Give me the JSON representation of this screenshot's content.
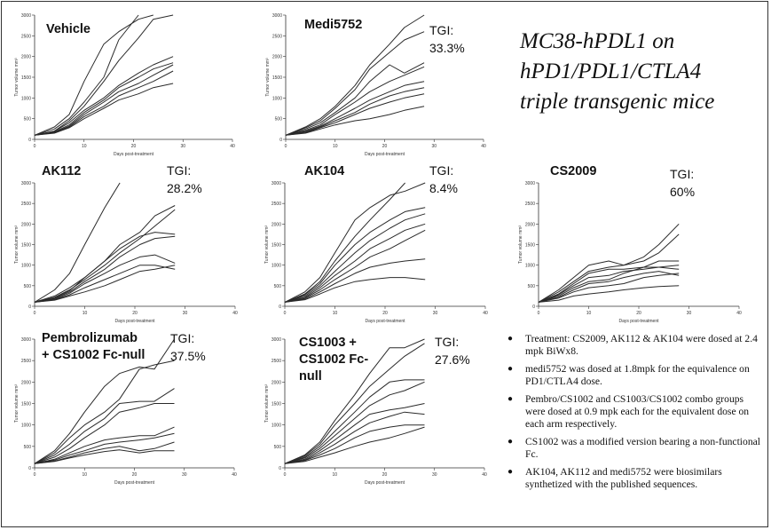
{
  "slide": {
    "title_lines": [
      "MC38-hPDL1 on",
      "hPD1/PDL1/CTLA4",
      "triple transgenic mice"
    ],
    "notes": [
      "Treatment: CS2009, AK112 & AK104 were dosed at 2.4 mpk BiWx8.",
      "medi5752 was dosed at 1.8mpk for the equivalence on PD1/CTLA4 dose.",
      "Pembro/CS1002 and CS1003/CS1002 combo groups were dosed at 0.9 mpk each for the equivalent dose on each arm respectively.",
      "CS1002 was a modified version bearing a non-functional Fc.",
      "AK104, AK112 and medi5752 were biosimilars synthetized with the published sequences."
    ]
  },
  "chart_data": [
    {
      "type": "line",
      "group": "Vehicle",
      "group_lines": [
        "Vehicle"
      ],
      "tgi_lines": [],
      "xlabel": "Days post-treatment",
      "ylabel": "Tumor volume mm³",
      "xlim": [
        0,
        40
      ],
      "ylim": [
        0,
        3000
      ],
      "xticks": [
        0,
        10,
        20,
        30,
        40
      ],
      "yticks": [
        0,
        500,
        1000,
        1500,
        2000,
        2500,
        3000
      ],
      "x": [
        0,
        4,
        7,
        10,
        14,
        17,
        21,
        24,
        28
      ],
      "series": [
        {
          "values": [
            100,
            300,
            600,
            1400,
            2300,
            2600,
            2900,
            3000,
            null
          ]
        },
        {
          "values": [
            100,
            250,
            500,
            900,
            1500,
            2400,
            3000,
            null,
            null
          ]
        },
        {
          "values": [
            100,
            200,
            450,
            800,
            1400,
            1900,
            2450,
            2900,
            3000
          ]
        },
        {
          "values": [
            100,
            200,
            400,
            700,
            1000,
            1300,
            1600,
            1800,
            2000
          ]
        },
        {
          "values": [
            100,
            180,
            350,
            650,
            950,
            1250,
            1500,
            1700,
            1850
          ]
        },
        {
          "values": [
            100,
            170,
            320,
            600,
            900,
            1150,
            1350,
            1550,
            1800
          ]
        },
        {
          "values": [
            100,
            160,
            300,
            550,
            800,
            1050,
            1250,
            1400,
            1650
          ]
        },
        {
          "values": [
            100,
            150,
            280,
            500,
            750,
            950,
            1100,
            1250,
            1350
          ]
        }
      ]
    },
    {
      "type": "line",
      "group": "Medi5752",
      "group_lines": [
        "Medi5752"
      ],
      "tgi_lines": [
        "TGI:",
        "33.3%"
      ],
      "xlabel": "Days post-treatment",
      "ylabel": "Tumor volume mm³",
      "xlim": [
        0,
        40
      ],
      "ylim": [
        0,
        3000
      ],
      "xticks": [
        0,
        10,
        20,
        30,
        40
      ],
      "yticks": [
        0,
        500,
        1000,
        1500,
        2000,
        2500,
        3000
      ],
      "x": [
        0,
        4,
        7,
        10,
        14,
        17,
        21,
        24,
        28
      ],
      "series": [
        {
          "values": [
            100,
            300,
            500,
            800,
            1300,
            1800,
            2300,
            2700,
            3000
          ]
        },
        {
          "values": [
            100,
            280,
            450,
            750,
            1200,
            1700,
            2100,
            2400,
            2600
          ]
        },
        {
          "values": [
            100,
            250,
            400,
            650,
            1000,
            1400,
            1800,
            1600,
            1850
          ]
        },
        {
          "values": [
            100,
            220,
            350,
            600,
            900,
            1150,
            1400,
            1550,
            1750
          ]
        },
        {
          "values": [
            100,
            200,
            320,
            500,
            750,
            950,
            1150,
            1300,
            1400
          ]
        },
        {
          "values": [
            100,
            180,
            300,
            450,
            650,
            850,
            1050,
            1150,
            1250
          ]
        },
        {
          "values": [
            100,
            160,
            280,
            400,
            600,
            750,
            900,
            1000,
            1100
          ]
        },
        {
          "values": [
            100,
            150,
            250,
            350,
            450,
            500,
            600,
            700,
            800
          ]
        }
      ]
    },
    {
      "type": "line",
      "group": "AK112",
      "group_lines": [
        "AK112"
      ],
      "tgi_lines": [
        "TGI:",
        "28.2%"
      ],
      "xlabel": "Days post-treatment",
      "ylabel": "Tumor volume mm³",
      "xlim": [
        0,
        40
      ],
      "ylim": [
        0,
        3000
      ],
      "xticks": [
        0,
        10,
        20,
        30,
        40
      ],
      "yticks": [
        0,
        500,
        1000,
        1500,
        2000,
        2500,
        3000
      ],
      "x": [
        0,
        4,
        7,
        10,
        14,
        17,
        21,
        24,
        28
      ],
      "series": [
        {
          "values": [
            100,
            400,
            800,
            1500,
            2400,
            3000,
            null,
            null,
            null
          ]
        },
        {
          "values": [
            100,
            250,
            450,
            700,
            1100,
            1500,
            1800,
            2200,
            2450
          ]
        },
        {
          "values": [
            100,
            220,
            400,
            650,
            1000,
            1300,
            1650,
            1950,
            2350
          ]
        },
        {
          "values": [
            100,
            200,
            380,
            700,
            1100,
            1400,
            1700,
            1800,
            1750
          ]
        },
        {
          "values": [
            100,
            190,
            350,
            600,
            900,
            1200,
            1500,
            1650,
            1700
          ]
        },
        {
          "values": [
            100,
            170,
            320,
            550,
            800,
            1000,
            1200,
            1250,
            1050
          ]
        },
        {
          "values": [
            100,
            160,
            280,
            450,
            650,
            800,
            1000,
            1000,
            900
          ]
        },
        {
          "values": [
            100,
            150,
            250,
            350,
            500,
            650,
            850,
            900,
            1000
          ]
        }
      ]
    },
    {
      "type": "line",
      "group": "AK104",
      "group_lines": [
        "AK104"
      ],
      "tgi_lines": [
        "TGI:",
        "8.4%"
      ],
      "xlabel": "Days post-treatment",
      "ylabel": "Tumor volume mm³",
      "xlim": [
        0,
        40
      ],
      "ylim": [
        0,
        3000
      ],
      "xticks": [
        0,
        10,
        20,
        30,
        40
      ],
      "yticks": [
        0,
        500,
        1000,
        1500,
        2000,
        2500,
        3000
      ],
      "x": [
        0,
        4,
        7,
        10,
        14,
        17,
        21,
        24,
        28
      ],
      "series": [
        {
          "values": [
            100,
            350,
            700,
            1300,
            2100,
            2400,
            2700,
            2800,
            3000
          ]
        },
        {
          "values": [
            100,
            300,
            600,
            1100,
            1700,
            2100,
            2600,
            3000,
            null
          ]
        },
        {
          "values": [
            100,
            280,
            550,
            1000,
            1500,
            1800,
            2100,
            2300,
            2400
          ]
        },
        {
          "values": [
            100,
            250,
            500,
            850,
            1300,
            1600,
            1900,
            2100,
            2250
          ]
        },
        {
          "values": [
            100,
            220,
            450,
            750,
            1100,
            1400,
            1650,
            1850,
            2000
          ]
        },
        {
          "values": [
            100,
            200,
            400,
            650,
            950,
            1200,
            1400,
            1600,
            1850
          ]
        },
        {
          "values": [
            100,
            180,
            350,
            550,
            800,
            950,
            1050,
            1100,
            1150
          ]
        },
        {
          "values": [
            100,
            160,
            300,
            450,
            600,
            650,
            700,
            700,
            650
          ]
        }
      ]
    },
    {
      "type": "line",
      "group": "CS2009",
      "group_lines": [
        "CS2009"
      ],
      "tgi_lines": [
        "TGI:",
        "60%"
      ],
      "xlabel": "Days post-treatment",
      "ylabel": "Tumor volume mm³",
      "xlim": [
        0,
        40
      ],
      "ylim": [
        0,
        3000
      ],
      "xticks": [
        0,
        10,
        20,
        30,
        40
      ],
      "yticks": [
        0,
        500,
        1000,
        1500,
        2000,
        2500,
        3000
      ],
      "x": [
        0,
        4,
        7,
        10,
        14,
        17,
        21,
        24,
        28
      ],
      "series": [
        {
          "values": [
            100,
            400,
            700,
            1000,
            1100,
            1000,
            1200,
            1500,
            2000
          ]
        },
        {
          "values": [
            100,
            350,
            600,
            850,
            950,
            1000,
            1100,
            1300,
            1750
          ]
        },
        {
          "values": [
            100,
            300,
            550,
            800,
            900,
            900,
            950,
            1100,
            1100
          ]
        },
        {
          "values": [
            100,
            280,
            500,
            700,
            750,
            850,
            900,
            950,
            1000
          ]
        },
        {
          "values": [
            100,
            250,
            450,
            600,
            650,
            800,
            950,
            950,
            900
          ]
        },
        {
          "values": [
            100,
            220,
            400,
            550,
            600,
            700,
            800,
            850,
            750
          ]
        },
        {
          "values": [
            100,
            200,
            350,
            450,
            500,
            550,
            700,
            750,
            800
          ]
        },
        {
          "values": [
            100,
            150,
            250,
            300,
            350,
            400,
            450,
            480,
            500
          ]
        }
      ]
    },
    {
      "type": "line",
      "group": "Pembrolizumab + CS1002 Fc-null",
      "group_lines": [
        "Pembrolizumab",
        "+ CS1002 Fc-null"
      ],
      "tgi_lines": [
        "TGI:",
        "37.5%"
      ],
      "xlabel": "Days post-treatment",
      "ylabel": "Tumor volume mm³",
      "xlim": [
        0,
        40
      ],
      "ylim": [
        0,
        3000
      ],
      "xticks": [
        0,
        10,
        20,
        30,
        40
      ],
      "yticks": [
        0,
        500,
        1000,
        1500,
        2000,
        2500,
        3000
      ],
      "x": [
        0,
        4,
        7,
        10,
        14,
        17,
        21,
        24,
        28
      ],
      "series": [
        {
          "values": [
            100,
            400,
            800,
            1300,
            1900,
            2200,
            2350,
            2300,
            3000
          ]
        },
        {
          "values": [
            100,
            350,
            700,
            1000,
            1300,
            1600,
            2300,
            2400,
            2500
          ]
        },
        {
          "values": [
            100,
            300,
            550,
            850,
            1150,
            1500,
            1550,
            1550,
            1850
          ]
        },
        {
          "values": [
            100,
            250,
            450,
            700,
            1000,
            1300,
            1400,
            1500,
            1500
          ]
        },
        {
          "values": [
            100,
            200,
            350,
            500,
            650,
            700,
            750,
            750,
            950
          ]
        },
        {
          "values": [
            100,
            180,
            300,
            400,
            550,
            600,
            650,
            700,
            800
          ]
        },
        {
          "values": [
            100,
            160,
            250,
            350,
            450,
            500,
            400,
            450,
            600
          ]
        },
        {
          "values": [
            100,
            150,
            230,
            300,
            380,
            420,
            350,
            400,
            400
          ]
        }
      ]
    },
    {
      "type": "line",
      "group": "CS1003 + CS1002 Fc-null",
      "group_lines": [
        "CS1003 +",
        "CS1002 Fc-",
        "null"
      ],
      "tgi_lines": [
        "TGI:",
        "27.6%"
      ],
      "xlabel": "Days post-treatment",
      "ylabel": "Tumor volume mm³",
      "xlim": [
        0,
        40
      ],
      "ylim": [
        0,
        3000
      ],
      "xticks": [
        0,
        10,
        20,
        30,
        40
      ],
      "yticks": [
        0,
        500,
        1000,
        1500,
        2000,
        2500,
        3000
      ],
      "x": [
        0,
        4,
        7,
        10,
        14,
        17,
        21,
        24,
        28
      ],
      "series": [
        {
          "values": [
            100,
            300,
            600,
            1100,
            1700,
            2200,
            2800,
            2800,
            3000
          ]
        },
        {
          "values": [
            100,
            280,
            550,
            1000,
            1500,
            1900,
            2300,
            2600,
            2900
          ]
        },
        {
          "values": [
            100,
            250,
            500,
            850,
            1300,
            1650,
            2000,
            2050,
            2050
          ]
        },
        {
          "values": [
            100,
            230,
            450,
            750,
            1150,
            1450,
            1700,
            1800,
            2000
          ]
        },
        {
          "values": [
            100,
            200,
            400,
            650,
            1000,
            1250,
            1350,
            1400,
            1500
          ]
        },
        {
          "values": [
            100,
            180,
            350,
            550,
            850,
            1050,
            1200,
            1300,
            1250
          ]
        },
        {
          "values": [
            100,
            170,
            300,
            450,
            700,
            850,
            950,
            1000,
            1000
          ]
        },
        {
          "values": [
            100,
            150,
            250,
            350,
            500,
            600,
            700,
            800,
            950
          ]
        }
      ]
    }
  ]
}
